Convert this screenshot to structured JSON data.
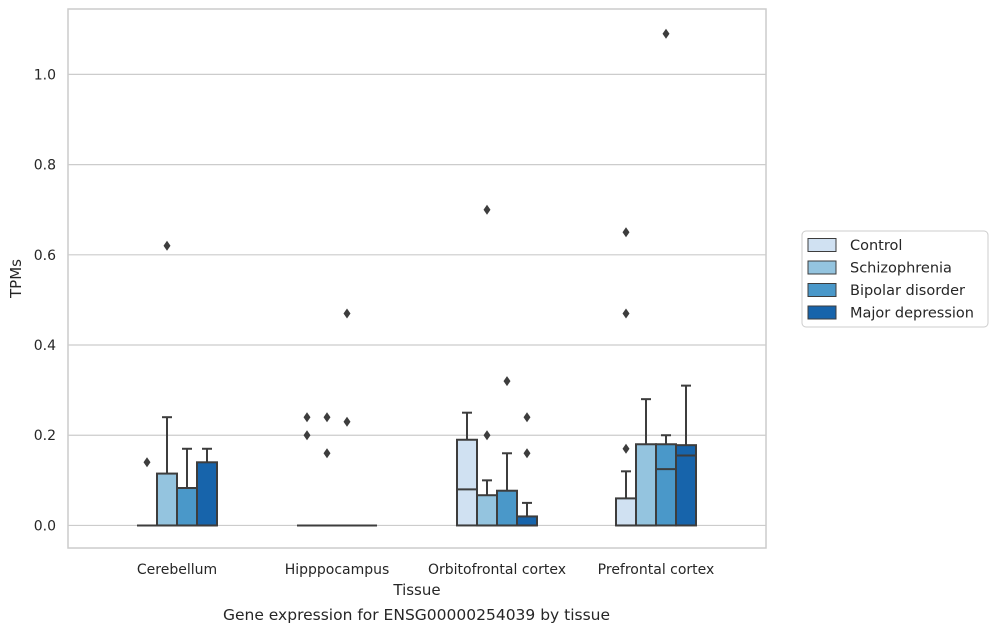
{
  "caption": "Gene expression for ENSG00000254039 by tissue",
  "chart_data": {
    "type": "box",
    "xlabel": "Tissue",
    "ylabel": "TPMs",
    "ylim": [
      -0.05,
      1.145
    ],
    "yticks": [
      0.0,
      0.2,
      0.4,
      0.6,
      0.8,
      1.0
    ],
    "ytick_labels": [
      "0.0",
      "0.2",
      "0.4",
      "0.6",
      "0.8",
      "1.0"
    ],
    "grid": "horizontal",
    "legend_position": "right",
    "categories": [
      "Cerebellum",
      "Hipppocampus",
      "Orbitofrontal cortex",
      "Prefrontal cortex"
    ],
    "series": [
      {
        "name": "Control",
        "color": "#d0e1f2",
        "boxes": [
          {
            "q1": 0.0,
            "median": 0.0,
            "q3": 0.0,
            "whislo": 0.0,
            "whishi": 0.0,
            "fliers": [
              0.14
            ]
          },
          {
            "q1": 0.0,
            "median": 0.0,
            "q3": 0.0,
            "whislo": 0.0,
            "whishi": 0.0,
            "fliers": [
              0.2,
              0.24
            ]
          },
          {
            "q1": 0.0,
            "median": 0.08,
            "q3": 0.19,
            "whislo": 0.0,
            "whishi": 0.25,
            "fliers": []
          },
          {
            "q1": 0.0,
            "median": 0.0,
            "q3": 0.06,
            "whislo": 0.0,
            "whishi": 0.12,
            "fliers": [
              0.17,
              0.47,
              0.65
            ]
          }
        ]
      },
      {
        "name": "Schizophrenia",
        "color": "#94c4df",
        "boxes": [
          {
            "q1": 0.0,
            "median": 0.0,
            "q3": 0.115,
            "whislo": 0.0,
            "whishi": 0.24,
            "fliers": [
              0.62
            ]
          },
          {
            "q1": 0.0,
            "median": 0.0,
            "q3": 0.0,
            "whislo": 0.0,
            "whishi": 0.0,
            "fliers": [
              0.16,
              0.24
            ]
          },
          {
            "q1": 0.0,
            "median": 0.0,
            "q3": 0.067,
            "whislo": 0.0,
            "whishi": 0.1,
            "fliers": [
              0.2,
              0.7
            ]
          },
          {
            "q1": 0.0,
            "median": 0.0,
            "q3": 0.18,
            "whislo": 0.0,
            "whishi": 0.28,
            "fliers": []
          }
        ]
      },
      {
        "name": "Bipolar disorder",
        "color": "#4a98c9",
        "boxes": [
          {
            "q1": 0.0,
            "median": 0.0,
            "q3": 0.083,
            "whislo": 0.0,
            "whishi": 0.17,
            "fliers": []
          },
          {
            "q1": 0.0,
            "median": 0.0,
            "q3": 0.0,
            "whislo": 0.0,
            "whishi": 0.0,
            "fliers": [
              0.23,
              0.47
            ]
          },
          {
            "q1": 0.0,
            "median": 0.0,
            "q3": 0.077,
            "whislo": 0.0,
            "whishi": 0.16,
            "fliers": [
              0.32
            ]
          },
          {
            "q1": 0.0,
            "median": 0.125,
            "q3": 0.18,
            "whislo": 0.0,
            "whishi": 0.2,
            "fliers": [
              1.09
            ]
          }
        ]
      },
      {
        "name": "Major depression",
        "color": "#1764ab",
        "boxes": [
          {
            "q1": 0.0,
            "median": 0.0,
            "q3": 0.14,
            "whislo": 0.0,
            "whishi": 0.17,
            "fliers": []
          },
          {
            "q1": 0.0,
            "median": 0.0,
            "q3": 0.0,
            "whislo": 0.0,
            "whishi": 0.0,
            "fliers": []
          },
          {
            "q1": 0.0,
            "median": 0.0,
            "q3": 0.02,
            "whislo": 0.0,
            "whishi": 0.05,
            "fliers": [
              0.16,
              0.24
            ]
          },
          {
            "q1": 0.0,
            "median": 0.155,
            "q3": 0.178,
            "whislo": 0.0,
            "whishi": 0.31,
            "fliers": []
          }
        ]
      }
    ]
  }
}
